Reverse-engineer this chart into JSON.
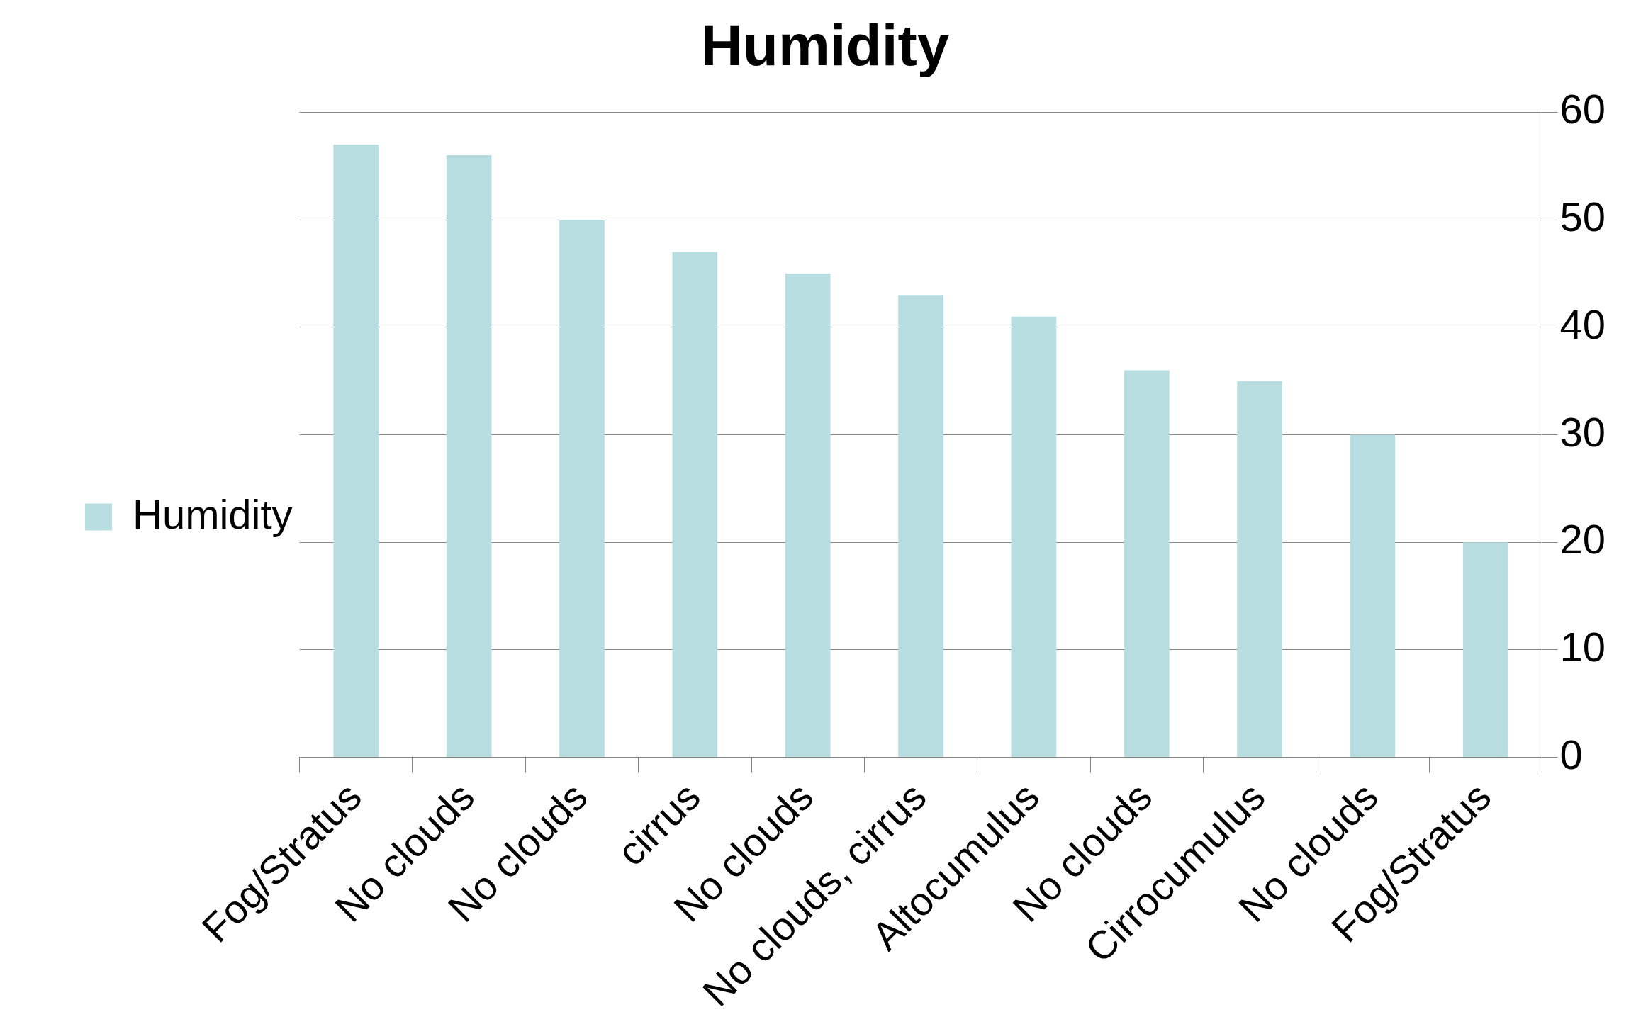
{
  "chart_data": {
    "type": "bar",
    "title": "Humidity",
    "categories": [
      "Fog/Stratus",
      "No clouds",
      "No clouds",
      "cirrus",
      "No clouds",
      "No clouds, cirrus",
      "Altocumulus",
      "No clouds",
      "Cirrocumulus",
      "No clouds",
      "Fog/Stratus"
    ],
    "series": [
      {
        "name": "Humidity",
        "color": "#b7dde0",
        "values": [
          57,
          56,
          50,
          47,
          45,
          43,
          41,
          36,
          35,
          30,
          20
        ]
      }
    ],
    "ylim": [
      0,
      60
    ],
    "yticks": [
      0,
      10,
      20,
      30,
      40,
      50,
      60
    ],
    "grid": "y",
    "legend": "left"
  }
}
